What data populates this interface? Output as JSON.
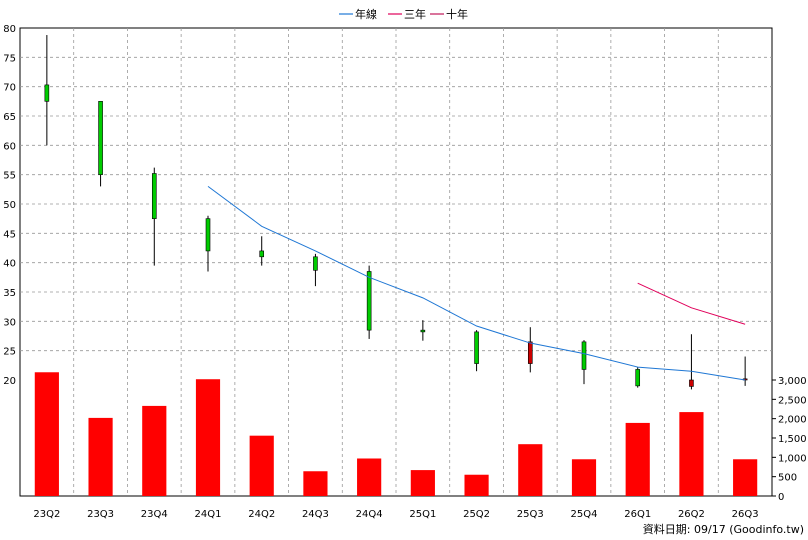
{
  "chart_data": {
    "type": "candlestick+bar",
    "legend": [
      {
        "name": "年線",
        "color": "#1f77d4"
      },
      {
        "name": "三年",
        "color": "#e0005a"
      },
      {
        "name": "十年",
        "color": "#c2185b"
      }
    ],
    "categories": [
      "23Q2",
      "23Q3",
      "23Q4",
      "24Q1",
      "24Q2",
      "24Q3",
      "24Q4",
      "25Q1",
      "25Q2",
      "25Q3",
      "25Q4",
      "26Q1",
      "26Q2",
      "26Q3"
    ],
    "price_axis": {
      "min": 20,
      "max": 80,
      "ticks": [
        20,
        25,
        30,
        35,
        40,
        45,
        50,
        55,
        60,
        65,
        70,
        75,
        80
      ]
    },
    "volume_axis": {
      "min": 0,
      "max": 3000,
      "ticks": [
        0,
        500,
        1000,
        1500,
        2000,
        2500,
        3000
      ],
      "tick_labels": [
        "0",
        "500",
        "1,000",
        "1,500",
        "2,000",
        "2,500",
        "3,000"
      ]
    },
    "candles": [
      {
        "open": 67.5,
        "close": 70.3,
        "high": 78.8,
        "low": 60.0
      },
      {
        "open": 55.0,
        "close": 67.5,
        "high": 67.5,
        "low": 53.0
      },
      {
        "open": 47.5,
        "close": 55.2,
        "high": 56.2,
        "low": 39.5
      },
      {
        "open": 42.0,
        "close": 47.5,
        "high": 48.0,
        "low": 38.5
      },
      {
        "open": 41.0,
        "close": 42.0,
        "high": 44.5,
        "low": 39.5
      },
      {
        "open": 38.7,
        "close": 41.0,
        "high": 41.5,
        "low": 36.0
      },
      {
        "open": 28.5,
        "close": 38.5,
        "high": 39.5,
        "low": 27.0
      },
      {
        "open": 28.2,
        "close": 28.5,
        "high": 30.2,
        "low": 26.7
      },
      {
        "open": 22.8,
        "close": 28.2,
        "high": 28.5,
        "low": 21.5
      },
      {
        "open": 26.5,
        "close": 22.8,
        "high": 29.0,
        "low": 21.3
      },
      {
        "open": 21.8,
        "close": 26.5,
        "high": 26.8,
        "low": 19.3
      },
      {
        "open": 19.0,
        "close": 21.8,
        "high": 22.2,
        "low": 18.7
      },
      {
        "open": 20.0,
        "close": 18.9,
        "high": 27.8,
        "low": 18.4
      },
      {
        "open": 20.2,
        "close": 20.0,
        "high": 24.0,
        "low": 19.0
      }
    ],
    "series": [
      {
        "name": "年線",
        "values": [
          null,
          null,
          null,
          53.0,
          46.2,
          42.0,
          37.5,
          34.0,
          29.2,
          26.3,
          24.5,
          22.2,
          21.5,
          20.0
        ]
      },
      {
        "name": "三年",
        "values": [
          null,
          null,
          null,
          null,
          null,
          null,
          null,
          null,
          null,
          null,
          null,
          36.5,
          32.3,
          29.5
        ]
      }
    ],
    "volume": [
      3200,
      2020,
      2330,
      3020,
      1560,
      640,
      970,
      670,
      550,
      1340,
      950,
      1890,
      2170,
      950
    ],
    "up_color": "#00cc00",
    "down_color": "#cc0000",
    "volume_color": "#ff0000"
  },
  "source_text": "資料日期: 09/17  (Goodinfo.tw)"
}
